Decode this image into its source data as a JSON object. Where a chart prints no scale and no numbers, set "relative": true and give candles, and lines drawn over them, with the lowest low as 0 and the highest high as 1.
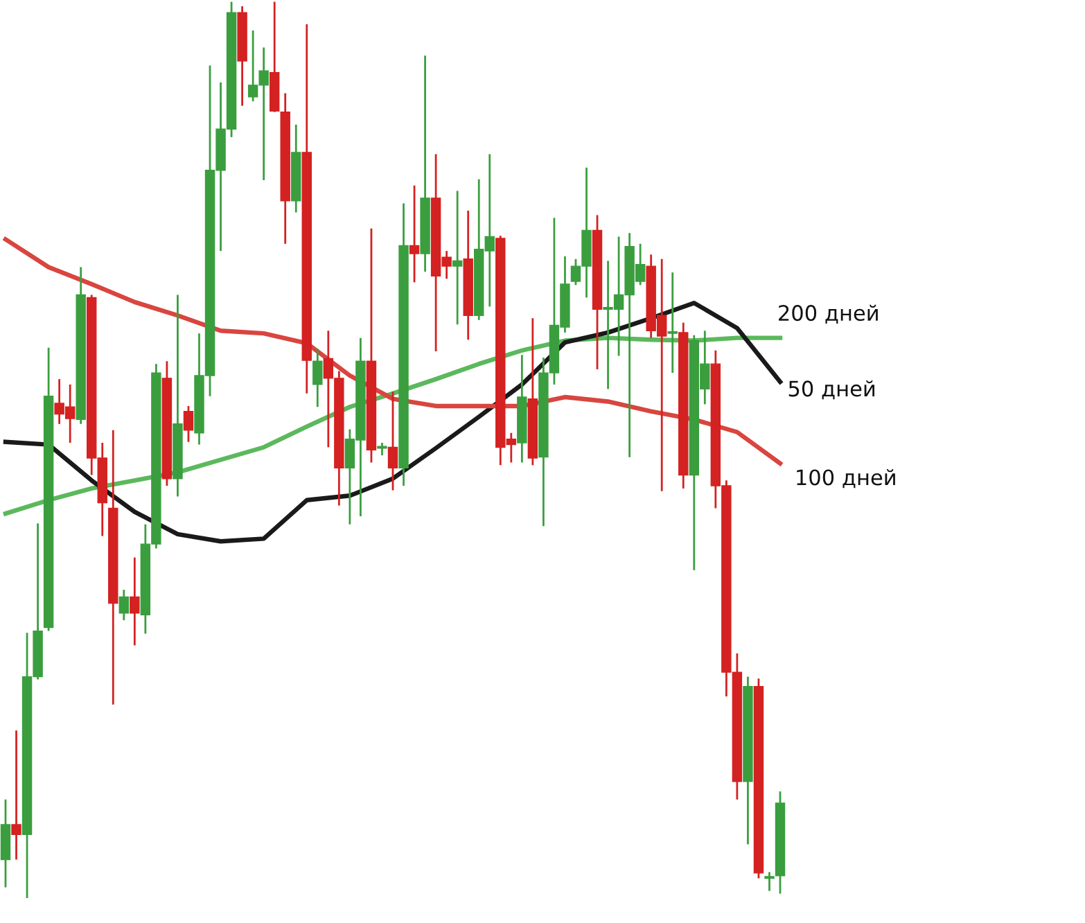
{
  "chart_data": {
    "type": "candlestick",
    "relative": true,
    "legend": false,
    "categories": [
      null,
      null,
      null,
      null,
      null,
      null,
      null,
      null,
      null,
      null,
      null,
      null,
      null,
      null,
      null,
      null,
      null,
      null,
      null,
      null,
      null,
      null,
      null,
      null,
      null,
      null,
      null,
      null,
      null,
      null,
      null,
      null,
      null,
      null,
      null,
      null,
      null,
      null,
      null,
      null,
      null,
      null,
      null,
      null,
      null,
      null,
      null,
      null,
      null,
      null,
      null,
      null,
      null,
      null,
      null,
      null,
      null,
      null,
      null,
      null,
      null,
      null,
      null,
      null,
      null,
      null,
      null,
      null,
      null,
      null,
      null,
      null,
      null
    ],
    "ohlc": [
      [
        0.043,
        0.11,
        0.012,
        0.082
      ],
      [
        0.082,
        0.187,
        0.043,
        0.071
      ],
      [
        0.071,
        0.296,
        0.0,
        0.247
      ],
      [
        0.247,
        0.418,
        0.244,
        0.298
      ],
      [
        0.302,
        0.614,
        0.298,
        0.56
      ],
      [
        0.552,
        0.579,
        0.529,
        0.54
      ],
      [
        0.548,
        0.573,
        0.508,
        0.535
      ],
      [
        0.534,
        0.704,
        0.529,
        0.673
      ],
      [
        0.67,
        0.673,
        0.472,
        0.491
      ],
      [
        0.491,
        0.508,
        0.404,
        0.441
      ],
      [
        0.435,
        0.522,
        0.216,
        0.329
      ],
      [
        0.318,
        0.344,
        0.31,
        0.336
      ],
      [
        0.336,
        0.38,
        0.282,
        0.318
      ],
      [
        0.316,
        0.417,
        0.295,
        0.395
      ],
      [
        0.395,
        0.596,
        0.39,
        0.586
      ],
      [
        0.58,
        0.599,
        0.46,
        0.468
      ],
      [
        0.468,
        0.673,
        0.448,
        0.529
      ],
      [
        0.543,
        0.549,
        0.509,
        0.522
      ],
      [
        0.519,
        0.63,
        0.506,
        0.583
      ],
      [
        0.583,
        0.929,
        0.56,
        0.812
      ],
      [
        0.812,
        0.91,
        0.722,
        0.858
      ],
      [
        0.858,
        1.0,
        0.849,
        0.988
      ],
      [
        0.988,
        0.995,
        0.884,
        0.934
      ],
      [
        0.894,
        0.968,
        0.889,
        0.907
      ],
      [
        0.907,
        0.949,
        0.801,
        0.923
      ],
      [
        0.921,
        1.0,
        0.877,
        0.878
      ],
      [
        0.877,
        0.898,
        0.73,
        0.778
      ],
      [
        0.778,
        0.863,
        0.765,
        0.832
      ],
      [
        0.832,
        0.975,
        0.563,
        0.6
      ],
      [
        0.573,
        0.613,
        0.548,
        0.599
      ],
      [
        0.602,
        0.633,
        0.503,
        0.58
      ],
      [
        0.58,
        0.588,
        0.438,
        0.48
      ],
      [
        0.48,
        0.523,
        0.417,
        0.512
      ],
      [
        0.511,
        0.625,
        0.426,
        0.599
      ],
      [
        0.599,
        0.747,
        0.486,
        0.5
      ],
      [
        0.502,
        0.508,
        0.494,
        0.503
      ],
      [
        0.503,
        0.565,
        0.455,
        0.48
      ],
      [
        0.48,
        0.775,
        0.46,
        0.728
      ],
      [
        0.728,
        0.795,
        0.687,
        0.719
      ],
      [
        0.719,
        0.94,
        0.699,
        0.781
      ],
      [
        0.781,
        0.83,
        0.61,
        0.694
      ],
      [
        0.715,
        0.722,
        0.691,
        0.705
      ],
      [
        0.705,
        0.789,
        0.64,
        0.711
      ],
      [
        0.713,
        0.767,
        0.623,
        0.65
      ],
      [
        0.65,
        0.802,
        0.645,
        0.724
      ],
      [
        0.722,
        0.83,
        0.66,
        0.738
      ],
      [
        0.736,
        0.739,
        0.483,
        0.503
      ],
      [
        0.512,
        0.519,
        0.486,
        0.506
      ],
      [
        0.508,
        0.606,
        0.486,
        0.559
      ],
      [
        0.557,
        0.647,
        0.483,
        0.491
      ],
      [
        0.492,
        0.603,
        0.415,
        0.586
      ],
      [
        0.586,
        0.759,
        0.573,
        0.639
      ],
      [
        0.637,
        0.716,
        0.631,
        0.685
      ],
      [
        0.688,
        0.713,
        0.684,
        0.705
      ],
      [
        0.705,
        0.815,
        0.67,
        0.745
      ],
      [
        0.745,
        0.762,
        0.59,
        0.657
      ],
      [
        0.657,
        0.711,
        0.568,
        0.659
      ],
      [
        0.657,
        0.738,
        0.605,
        0.673
      ],
      [
        0.673,
        0.742,
        0.492,
        0.727
      ],
      [
        0.688,
        0.73,
        0.684,
        0.707
      ],
      [
        0.705,
        0.718,
        0.625,
        0.633
      ],
      [
        0.65,
        0.713,
        0.454,
        0.627
      ],
      [
        0.63,
        0.698,
        0.586,
        0.631
      ],
      [
        0.631,
        0.642,
        0.457,
        0.472
      ],
      [
        0.472,
        0.628,
        0.366,
        0.622
      ],
      [
        0.568,
        0.633,
        0.551,
        0.596
      ],
      [
        0.596,
        0.611,
        0.435,
        0.46
      ],
      [
        0.46,
        0.466,
        0.225,
        0.252
      ],
      [
        0.252,
        0.273,
        0.11,
        0.13
      ],
      [
        0.13,
        0.247,
        0.06,
        0.236
      ],
      [
        0.236,
        0.245,
        0.022,
        0.028
      ],
      [
        0.022,
        0.029,
        0.008,
        0.023
      ],
      [
        0.025,
        0.119,
        0.005,
        0.106
      ]
    ],
    "colors": [
      "#3a9e3f",
      "#d42121",
      "#3a9e3f",
      "#3a9e3f",
      "#3a9e3f",
      "#d42121",
      "#d42121",
      "#3a9e3f",
      "#d42121",
      "#d42121",
      "#d42121",
      "#3a9e3f",
      "#d42121",
      "#3a9e3f",
      "#3a9e3f",
      "#d42121",
      "#3a9e3f",
      "#d42121",
      "#3a9e3f",
      "#3a9e3f",
      "#3a9e3f",
      "#3a9e3f",
      "#d42121",
      "#3a9e3f",
      "#3a9e3f",
      "#d42121",
      "#d42121",
      "#3a9e3f",
      "#d42121",
      "#3a9e3f",
      "#d42121",
      "#d42121",
      "#3a9e3f",
      "#3a9e3f",
      "#d42121",
      "#3a9e3f",
      "#d42121",
      "#3a9e3f",
      "#d42121",
      "#3a9e3f",
      "#d42121",
      "#d42121",
      "#3a9e3f",
      "#d42121",
      "#3a9e3f",
      "#3a9e3f",
      "#d42121",
      "#d42121",
      "#3a9e3f",
      "#d42121",
      "#3a9e3f",
      "#3a9e3f",
      "#3a9e3f",
      "#3a9e3f",
      "#3a9e3f",
      "#d42121",
      "#3a9e3f",
      "#3a9e3f",
      "#3a9e3f",
      "#3a9e3f",
      "#d42121",
      "#d42121",
      "#3a9e3f",
      "#d42121",
      "#3a9e3f",
      "#3a9e3f",
      "#d42121",
      "#d42121",
      "#d42121",
      "#3a9e3f",
      "#d42121",
      "#3a9e3f",
      "#3a9e3f"
    ],
    "series": [
      {
        "name": "200 дней",
        "type": "line",
        "color": "#5cb85c",
        "values": [
          0.429,
          null,
          null,
          null,
          0.444,
          null,
          null,
          null,
          0.457,
          null,
          null,
          null,
          0.466,
          null,
          null,
          null,
          0.475,
          null,
          null,
          null,
          0.489,
          null,
          null,
          null,
          0.503,
          null,
          null,
          null,
          0.526,
          null,
          null,
          null,
          0.548,
          null,
          null,
          null,
          0.563,
          null,
          null,
          null,
          0.579,
          null,
          null,
          null,
          0.596,
          null,
          null,
          null,
          0.611,
          null,
          null,
          null,
          0.622,
          null,
          null,
          null,
          0.625,
          null,
          null,
          null,
          0.623,
          null,
          null,
          null,
          0.622,
          null,
          null,
          null,
          0.625,
          null,
          null,
          null,
          0.625
        ]
      },
      {
        "name": "50 дней",
        "type": "line",
        "color": "#1a1a1a",
        "values": [
          0.509,
          null,
          null,
          null,
          0.506,
          null,
          null,
          null,
          0.466,
          null,
          null,
          null,
          0.431,
          null,
          null,
          null,
          0.406,
          null,
          null,
          null,
          0.398,
          null,
          null,
          null,
          0.401,
          null,
          null,
          null,
          0.444,
          null,
          null,
          null,
          0.449,
          null,
          null,
          null,
          0.468,
          null,
          null,
          null,
          0.502,
          null,
          null,
          null,
          0.537,
          null,
          null,
          null,
          0.573,
          null,
          null,
          null,
          0.62,
          null,
          null,
          null,
          0.631,
          null,
          null,
          null,
          0.647,
          null,
          null,
          null,
          0.664,
          null,
          null,
          null,
          0.636,
          null,
          null,
          null,
          0.576
        ]
      },
      {
        "name": "100 дней",
        "type": "line",
        "color": "#d9453f",
        "values": [
          0.735,
          null,
          null,
          null,
          0.704,
          null,
          null,
          null,
          0.685,
          null,
          null,
          null,
          0.665,
          null,
          null,
          null,
          0.65,
          null,
          null,
          null,
          0.633,
          null,
          null,
          null,
          0.63,
          null,
          null,
          null,
          0.619,
          null,
          null,
          null,
          0.583,
          null,
          null,
          null,
          0.557,
          null,
          null,
          null,
          0.549,
          null,
          null,
          null,
          0.549,
          null,
          null,
          null,
          0.549,
          null,
          null,
          null,
          0.559,
          null,
          null,
          null,
          0.554,
          null,
          null,
          null,
          0.543,
          null,
          null,
          null,
          0.534,
          null,
          null,
          null,
          0.52,
          null,
          null,
          null,
          0.485
        ]
      }
    ]
  }
}
